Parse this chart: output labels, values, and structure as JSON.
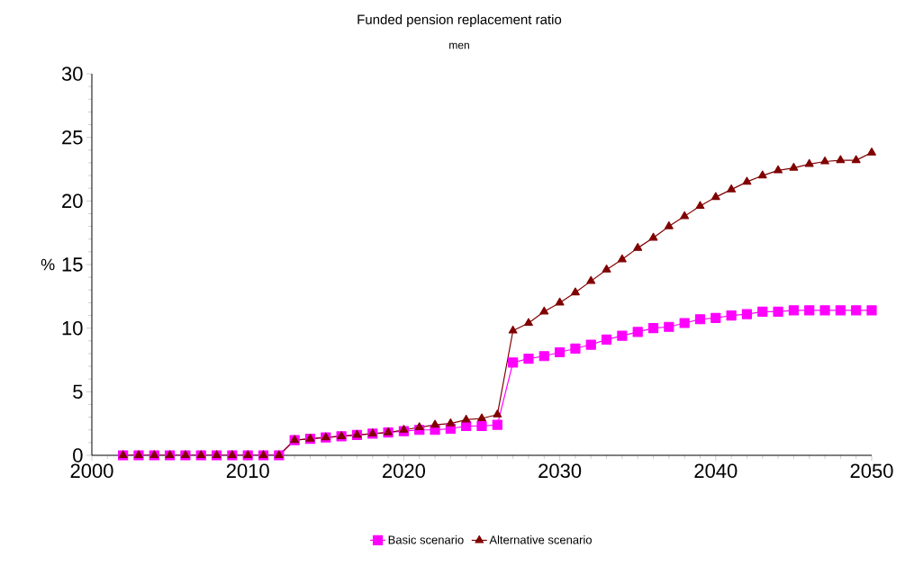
{
  "chart_data": {
    "type": "line",
    "title": "Funded pension replacement ratio",
    "subtitle": "men",
    "ylabel": "%",
    "x": [
      2002,
      2003,
      2004,
      2005,
      2006,
      2007,
      2008,
      2009,
      2010,
      2011,
      2012,
      2013,
      2014,
      2015,
      2016,
      2017,
      2018,
      2019,
      2020,
      2021,
      2022,
      2023,
      2024,
      2025,
      2026,
      2027,
      2028,
      2029,
      2030,
      2031,
      2032,
      2033,
      2034,
      2035,
      2036,
      2037,
      2038,
      2039,
      2040,
      2041,
      2042,
      2043,
      2044,
      2045,
      2046,
      2047,
      2048,
      2049,
      2050
    ],
    "series": [
      {
        "name": "Basic scenario",
        "color": "#ff00ff",
        "marker": "square",
        "values": [
          0,
          0,
          0,
          0,
          0,
          0,
          0,
          0,
          0,
          0,
          0,
          1.2,
          1.3,
          1.4,
          1.5,
          1.6,
          1.7,
          1.8,
          1.9,
          2.0,
          2.0,
          2.1,
          2.3,
          2.3,
          2.4,
          7.3,
          7.6,
          7.8,
          8.1,
          8.4,
          8.7,
          9.1,
          9.4,
          9.7,
          10.0,
          10.1,
          10.4,
          10.7,
          10.8,
          11.0,
          11.1,
          11.3,
          11.3,
          11.4,
          11.4,
          11.4,
          11.4,
          11.4,
          11.4
        ]
      },
      {
        "name": "Alternative scenario",
        "color": "#800000",
        "marker": "triangle",
        "values": [
          0,
          0,
          0,
          0,
          0,
          0,
          0,
          0,
          0,
          0,
          0,
          1.2,
          1.3,
          1.4,
          1.5,
          1.6,
          1.7,
          1.8,
          2.0,
          2.2,
          2.4,
          2.5,
          2.8,
          2.9,
          3.2,
          9.8,
          10.4,
          11.3,
          12.0,
          12.8,
          13.7,
          14.6,
          15.4,
          16.3,
          17.1,
          18.0,
          18.8,
          19.6,
          20.3,
          20.9,
          21.5,
          22.0,
          22.4,
          22.6,
          22.9,
          23.1,
          23.2,
          23.2,
          23.8
        ]
      }
    ],
    "xlim": [
      2000,
      2050
    ],
    "xticks": [
      2000,
      2010,
      2020,
      2030,
      2040,
      2050
    ],
    "ylim": [
      0,
      30
    ],
    "yticks": [
      0,
      5,
      10,
      15,
      20,
      25,
      30
    ],
    "legend": "bottom",
    "grid": false,
    "line_style": "solid"
  }
}
